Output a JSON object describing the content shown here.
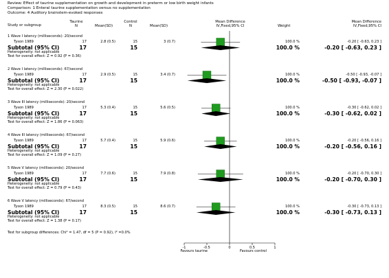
{
  "header": {
    "review": "Review:  Effect of taurine supplementation on growth and development in preterm or low birth weight infants",
    "comparison": "Comparison:  1 Enteral taurine supplementation versus no supplementation",
    "outcome": "Outcome:  4 Auditory brainstem-evoked responses"
  },
  "columns": {
    "study": "Study or subgroup",
    "group1": "Taurine",
    "group1_n": "N",
    "group1_mean": "Mean(SD)",
    "group2": "Control",
    "group2_n": "N",
    "group2_mean": "Mean(SD)",
    "effect_title": "Mean Difference",
    "effect_sub_left": "IV,Fixed,95% CI",
    "weight": "Weight",
    "effect_title2": "Mean Difference",
    "effect_sub_right": "IV,Fixed,95% CI"
  },
  "subgroups": [
    {
      "title": "1 Wave I latency (milliseconds): 20/second",
      "study": "Tyson 1989",
      "n1": "17",
      "m1": "2.8 (0.5)",
      "n2": "15",
      "m2": "3 (0.7)",
      "weight": "100.0 %",
      "ci_text": "-0.20 [ -0.63, 0.23 ]",
      "subtotal_label": "Subtotal (95% CI)",
      "sub_n1": "17",
      "sub_n2": "15",
      "sub_weight": "100.0 %",
      "sub_ci": "-0.20 [ -0.63, 0.23 ]",
      "het": "Heterogeneity: not applicable",
      "test": "Test for overall effect: Z = 0.92 (P = 0.36)"
    },
    {
      "title": "2 Wave I latency (milliseconds): 67/second",
      "study": "Tyson 1989",
      "n1": "17",
      "m1": "2.9 (0.5)",
      "n2": "15",
      "m2": "3.4 (0.7)",
      "weight": "100.0 %",
      "ci_text": "-0.50 [ -0.93, -0.07 ]",
      "subtotal_label": "Subtotal (95% CI)",
      "sub_n1": "17",
      "sub_n2": "15",
      "sub_weight": "100.0 %",
      "sub_ci": "-0.50 [ -0.93, -0.07 ]",
      "het": "Heterogeneity: not applicable",
      "test": "Test for overall effect: Z = 2.30 (P = 0.022)"
    },
    {
      "title": "3 Wave III latency (milliseconds): 20/second",
      "study": "Tyson 1989",
      "n1": "17",
      "m1": "5.3 (0.4)",
      "n2": "15",
      "m2": "5.6 (0.5)",
      "weight": "100.0 %",
      "ci_text": "-0.30 [ -0.62, 0.02 ]",
      "subtotal_label": "Subtotal (95% CI)",
      "sub_n1": "17",
      "sub_n2": "15",
      "sub_weight": "100.0 %",
      "sub_ci": "-0.30 [ -0.62, 0.02 ]",
      "het": "Heterogeneity: not applicable",
      "test": "Test for overall effect: Z = 1.86 (P = 0.063)"
    },
    {
      "title": "4 Wave III latency (milliseconds): 67/second",
      "study": "Tyson 1989",
      "n1": "17",
      "m1": "5.7 (0.4)",
      "n2": "15",
      "m2": "5.9 (0.6)",
      "weight": "100.0 %",
      "ci_text": "-0.20 [ -0.56, 0.16 ]",
      "subtotal_label": "Subtotal (95% CI)",
      "sub_n1": "17",
      "sub_n2": "15",
      "sub_weight": "100.0 %",
      "sub_ci": "-0.20 [ -0.56, 0.16 ]",
      "het": "Heterogeneity: not applicable",
      "test": "Test for overall effect: Z = 1.09 (P = 0.27)"
    },
    {
      "title": "5 Wave V latency (milliseconds): 20/second",
      "study": "Tyson 1989",
      "n1": "17",
      "m1": "7.7 (0.6)",
      "n2": "15",
      "m2": "7.9 (0.8)",
      "weight": "100.0 %",
      "ci_text": "-0.20 [ -0.70, 0.30 ]",
      "subtotal_label": "Subtotal (95% CI)",
      "sub_n1": "17",
      "sub_n2": "15",
      "sub_weight": "100.0 %",
      "sub_ci": "-0.20 [ -0.70, 0.30 ]",
      "het": "Heterogeneity: not applicable",
      "test": "Test for overall effect: Z = 0.79 (P = 0.43)"
    },
    {
      "title": "6 Wave V latency (milliseconds): 67/second",
      "study": "Tyson 1989",
      "n1": "17",
      "m1": "8.3 (0.5)",
      "n2": "15",
      "m2": "8.6 (0.7)",
      "weight": "100.0 %",
      "ci_text": "-0.30 [ -0.73, 0.13 ]",
      "subtotal_label": "Subtotal (95% CI)",
      "sub_n1": "17",
      "sub_n2": "15",
      "sub_weight": "100.0 %",
      "sub_ci": "-0.30 [ -0.73, 0.13 ]",
      "het": "Heterogeneity: not applicable",
      "test": "Test for overall effect: Z = 1.38 (P = 0.17)"
    }
  ],
  "footer": {
    "subgroup_test": "Test for subgroup differences: Chi² = 1.47, df = 5 (P = 0.92), I² =0.0%",
    "favours_left": "Favours taurine",
    "favours_right": "Favours control"
  },
  "colors": {
    "marker": "#1f9b1f",
    "marker_edge": "#0a5a0a",
    "line": "#000000",
    "axis": "#000000"
  },
  "chart_data": {
    "type": "forest",
    "effect_measure": "Mean Difference (IV, Fixed, 95% CI)",
    "xlim": [
      -1,
      1
    ],
    "x_ticks": [
      "-1",
      "-0.5",
      "0",
      "0.5",
      "1"
    ],
    "x_tick_values": [
      -1,
      -0.5,
      0,
      0.5,
      1
    ],
    "reference_line": 0,
    "studies": [
      {
        "subgroup": 1,
        "name": "Tyson 1989",
        "estimate": -0.2,
        "lower": -0.63,
        "upper": 0.23,
        "weight": 100.0
      },
      {
        "subgroup": 2,
        "name": "Tyson 1989",
        "estimate": -0.5,
        "lower": -0.93,
        "upper": -0.07,
        "weight": 100.0
      },
      {
        "subgroup": 3,
        "name": "Tyson 1989",
        "estimate": -0.3,
        "lower": -0.62,
        "upper": 0.02,
        "weight": 100.0
      },
      {
        "subgroup": 4,
        "name": "Tyson 1989",
        "estimate": -0.2,
        "lower": -0.56,
        "upper": 0.16,
        "weight": 100.0
      },
      {
        "subgroup": 5,
        "name": "Tyson 1989",
        "estimate": -0.2,
        "lower": -0.7,
        "upper": 0.3,
        "weight": 100.0
      },
      {
        "subgroup": 6,
        "name": "Tyson 1989",
        "estimate": -0.3,
        "lower": -0.73,
        "upper": 0.13,
        "weight": 100.0
      }
    ],
    "subtotals": [
      {
        "subgroup": 1,
        "estimate": -0.2,
        "lower": -0.63,
        "upper": 0.23
      },
      {
        "subgroup": 2,
        "estimate": -0.5,
        "lower": -0.93,
        "upper": -0.07
      },
      {
        "subgroup": 3,
        "estimate": -0.3,
        "lower": -0.62,
        "upper": 0.02
      },
      {
        "subgroup": 4,
        "estimate": -0.2,
        "lower": -0.56,
        "upper": 0.16
      },
      {
        "subgroup": 5,
        "estimate": -0.2,
        "lower": -0.7,
        "upper": 0.3
      },
      {
        "subgroup": 6,
        "estimate": -0.3,
        "lower": -0.73,
        "upper": 0.13
      }
    ]
  }
}
